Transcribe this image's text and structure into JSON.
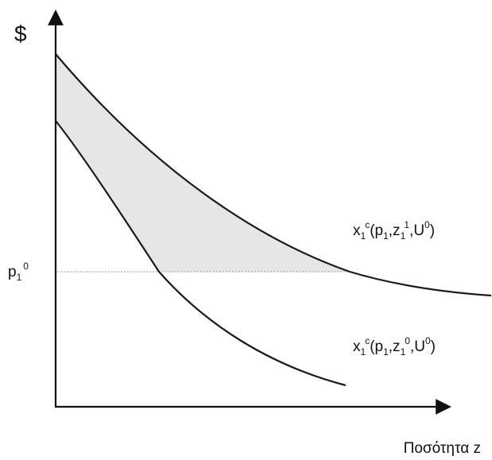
{
  "diagram": {
    "y_axis_label": "$",
    "x_axis_label": "Ποσότητα z",
    "price_label": {
      "base": "p",
      "sub": "1",
      "sup": "0"
    },
    "curve_upper_label": {
      "x": "x",
      "x_sub": "1",
      "x_sup": "c",
      "open": "(p",
      "p_sub": "1",
      "comma1": ",z",
      "z_sub": "1",
      "z_sup": "1",
      "comma2": ",U",
      "u_sup": "0",
      "close": ")"
    },
    "curve_lower_label": {
      "x": "x",
      "x_sub": "1",
      "x_sup": "c",
      "open": "(p",
      "p_sub": "1",
      "comma1": ",z",
      "z_sub": "1",
      "z_sup": "0",
      "comma2": ",U",
      "u_sup": "0",
      "close": ")"
    },
    "colors": {
      "axis": "#111111",
      "curve": "#1a1a1a",
      "shaded_area": "#e6e6e6",
      "dotted_line": "#aaaaaa"
    }
  }
}
